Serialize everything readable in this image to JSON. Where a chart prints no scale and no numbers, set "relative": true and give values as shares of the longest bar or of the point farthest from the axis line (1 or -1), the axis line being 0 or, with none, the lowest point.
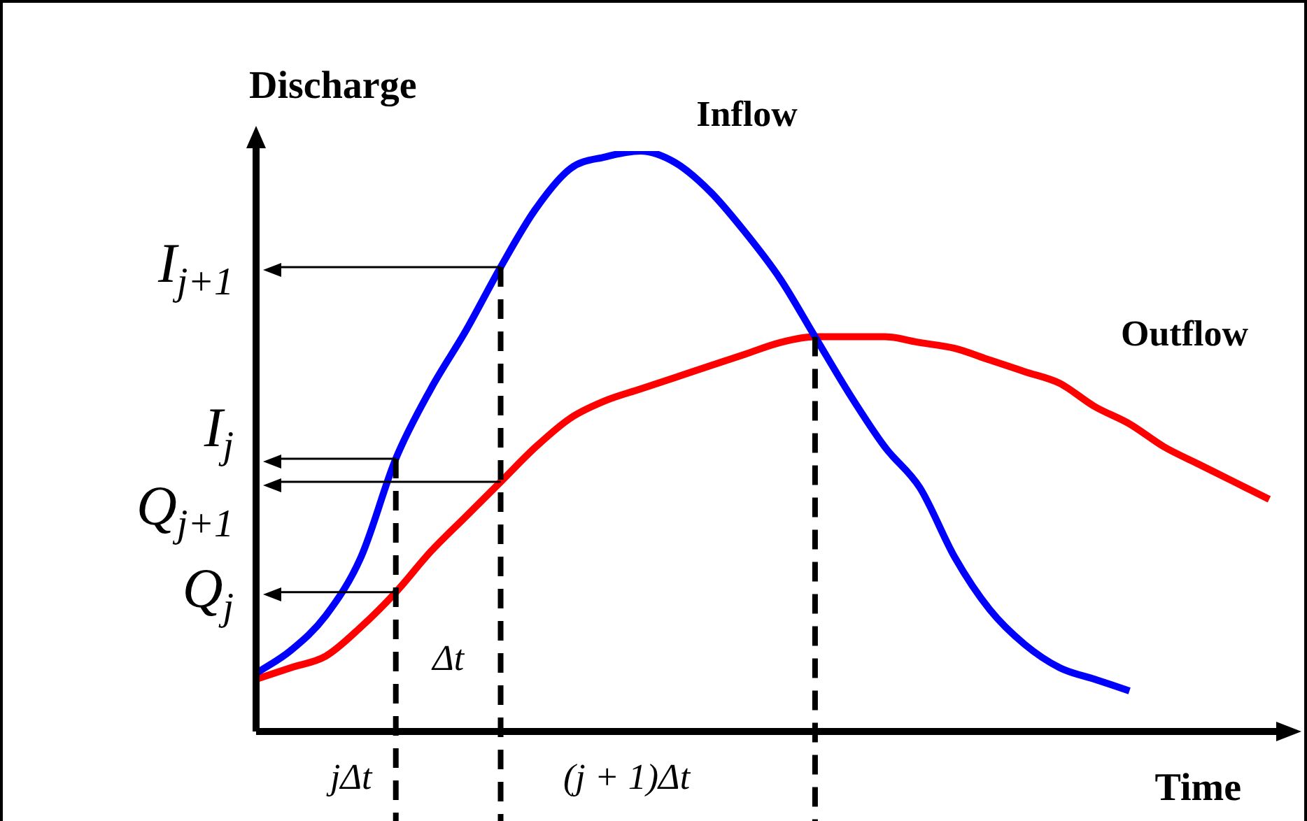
{
  "chart_data": {
    "type": "line",
    "relative": true,
    "xlabel": "Time",
    "ylabel": "Discharge",
    "categories": [
      null,
      null,
      null,
      null,
      null,
      null,
      null,
      null,
      null,
      null,
      null,
      null,
      null,
      null,
      null,
      null,
      null,
      null,
      null,
      null,
      null,
      null,
      null,
      null,
      null,
      null,
      null,
      null,
      null,
      null
    ],
    "series": [
      {
        "name": "Inflow",
        "color": "#0000ff",
        "values": [
          0.1,
          0.14,
          0.2,
          0.3,
          0.47,
          0.59,
          0.69,
          0.8,
          0.9,
          0.97,
          0.99,
          1,
          0.98,
          0.93,
          0.86,
          0.78,
          0.68,
          0.58,
          0.49,
          0.42,
          0.3,
          0.21,
          0.15,
          0.11,
          0.09,
          0.07,
          null,
          null,
          null,
          null
        ]
      },
      {
        "name": "Outflow",
        "color": "#ff0000",
        "values": [
          0.09,
          0.11,
          0.13,
          0.18,
          0.24,
          0.31,
          0.37,
          0.43,
          0.49,
          0.54,
          0.57,
          0.59,
          0.61,
          0.63,
          0.65,
          0.67,
          0.68,
          0.68,
          0.68,
          0.67,
          0.66,
          0.64,
          0.62,
          0.6,
          0.56,
          0.53,
          0.49,
          0.46,
          0.43,
          0.4
        ]
      }
    ],
    "ref_lines": [
      {
        "axis": "y",
        "value": 0.8,
        "label": "I$_{j+1}$"
      },
      {
        "axis": "y",
        "value": 0.47,
        "label": "I$_{j}$"
      },
      {
        "axis": "y",
        "value": 0.43,
        "label": "Q$_{j+1}$"
      },
      {
        "axis": "y",
        "value": 0.24,
        "label": "Q$_{j}$"
      }
    ],
    "annotations": [
      "jΔt",
      "(j + 1)Δt",
      "Δt"
    ],
    "legend": false,
    "grid": false,
    "marker": "none",
    "line_style": "solid"
  }
}
